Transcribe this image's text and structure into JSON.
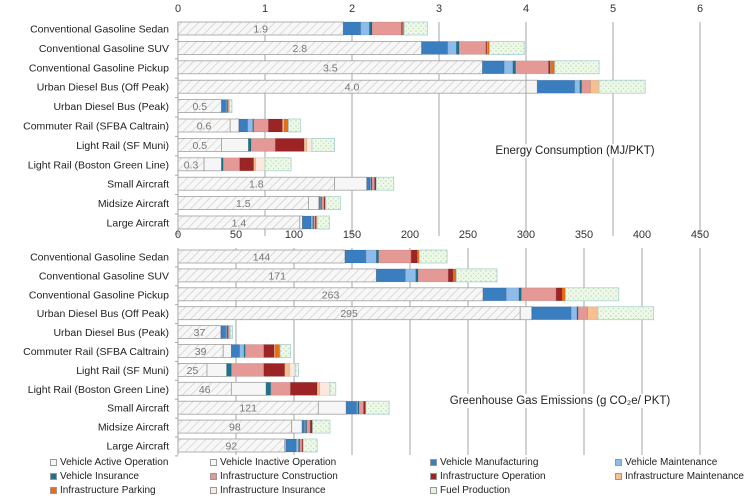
{
  "chart_data": [
    {
      "type": "bar",
      "orientation": "horizontal",
      "stacked": true,
      "title": "Energy Consumption (MJ/PKT)",
      "xlabel": "",
      "ylabel": "",
      "xlim": [
        0,
        6
      ],
      "xticks": [
        "0",
        "1",
        "2",
        "3",
        "4",
        "5",
        "6"
      ],
      "grid": true,
      "categories": [
        "Conventional Gasoline Sedan",
        "Conventional Gasoline SUV",
        "Conventional Gasoline Pickup",
        "Urban Diesel Bus (Off Peak)",
        "Urban Diesel Bus (Peak)",
        "Commuter Rail (SFBA Caltrain)",
        "Light Rail (SF Muni)",
        "Light Rail (Boston Green Line)",
        "Small Aircraft",
        "Midsize Aircraft",
        "Large Aircraft"
      ],
      "value_labels": [
        "1.9",
        "2.8",
        "3.5",
        "4.0",
        "0.5",
        "0.6",
        "0.5",
        "0.3",
        "1.8",
        "1.5",
        "1.4"
      ],
      "series": [
        {
          "name": "Vehicle Active Operation",
          "values": [
            1.9,
            2.8,
            3.5,
            4.0,
            0.5,
            0.6,
            0.5,
            0.3,
            1.8,
            1.5,
            1.4
          ]
        },
        {
          "name": "Vehicle Inactive Operation",
          "values": [
            0,
            0,
            0,
            0.13,
            0,
            0.1,
            0.31,
            0.2,
            0.37,
            0.12,
            0.03
          ]
        },
        {
          "name": "Vehicle Manufacturing",
          "values": [
            0.2,
            0.3,
            0.25,
            0.43,
            0.05,
            0.1,
            0,
            0,
            0.04,
            0.01,
            0.1
          ]
        },
        {
          "name": "Vehicle Maintenance",
          "values": [
            0.1,
            0.1,
            0.1,
            0.06,
            0.01,
            0.06,
            0,
            0,
            0.01,
            0.01,
            0.02
          ]
        },
        {
          "name": "Vehicle Insurance",
          "values": [
            0.03,
            0.03,
            0.03,
            0.02,
            0.01,
            0.01,
            0.03,
            0.02,
            0.01,
            0.01,
            0.01
          ]
        },
        {
          "name": "Infrastructure Construction",
          "values": [
            0.34,
            0.31,
            0.38,
            0.1,
            0.01,
            0.17,
            0.28,
            0.19,
            0.03,
            0.03,
            0.02
          ]
        },
        {
          "name": "Infrastructure Operation",
          "values": [
            0.01,
            0.01,
            0.02,
            0,
            0,
            0.16,
            0.33,
            0.16,
            0.02,
            0.01,
            0.01
          ]
        },
        {
          "name": "Infrastructure Maintenance",
          "values": [
            0.01,
            0.01,
            0.01,
            0.1,
            0.01,
            0.02,
            0.03,
            0.02,
            0,
            0.01,
            0.01
          ]
        },
        {
          "name": "Infrastructure Parking",
          "values": [
            0.01,
            0.02,
            0.04,
            0,
            0,
            0.05,
            0,
            0,
            0,
            0,
            0
          ]
        },
        {
          "name": "Infrastructure Insurance",
          "values": [
            0,
            0,
            0,
            0,
            0,
            0,
            0.06,
            0.11,
            0,
            0,
            0
          ]
        },
        {
          "name": "Fuel Production",
          "values": [
            0.27,
            0.4,
            0.51,
            0.53,
            0.03,
            0.14,
            0.26,
            0.3,
            0.2,
            0.17,
            0.14
          ]
        }
      ]
    },
    {
      "type": "bar",
      "orientation": "horizontal",
      "stacked": true,
      "title": "Greenhouse Gas Emissions (g CO₂e/ PKT)",
      "xlabel": "",
      "ylabel": "",
      "xlim": [
        0,
        450
      ],
      "xticks": [
        "0",
        "50",
        "100",
        "150",
        "200",
        "250",
        "300",
        "350",
        "400",
        "450"
      ],
      "grid": true,
      "categories": [
        "Conventional Gasoline Sedan",
        "Conventional Gasoline SUV",
        "Conventional Gasoline Pickup",
        "Urban Diesel Bus (Off Peak)",
        "Urban Diesel Bus (Peak)",
        "Commuter Rail (SFBA Caltrain)",
        "Light Rail (SF Muni)",
        "Light Rail (Boston Green Line)",
        "Small Aircraft",
        "Midsize Aircraft",
        "Large Aircraft"
      ],
      "value_labels": [
        "144",
        "171",
        "263",
        "295",
        "37",
        "39",
        "25",
        "46",
        "121",
        "98",
        "92"
      ],
      "series": [
        {
          "name": "Vehicle Active Operation",
          "values": [
            144,
            171,
            263,
            295,
            37,
            39,
            25,
            46,
            121,
            98,
            92
          ]
        },
        {
          "name": "Vehicle Inactive Operation",
          "values": [
            0,
            0,
            0,
            10,
            0,
            7,
            17,
            30,
            24,
            9,
            1
          ]
        },
        {
          "name": "Vehicle Manufacturing",
          "values": [
            18,
            25,
            20,
            34,
            4,
            7,
            0,
            0,
            9,
            2,
            9
          ]
        },
        {
          "name": "Vehicle Maintenance",
          "values": [
            9,
            9,
            11,
            5,
            1,
            4,
            0,
            0,
            1,
            1,
            2
          ]
        },
        {
          "name": "Vehicle Insurance",
          "values": [
            2,
            2,
            2,
            1,
            1,
            1,
            4,
            4,
            1,
            1,
            1
          ]
        },
        {
          "name": "Infrastructure Construction",
          "values": [
            28,
            26,
            30,
            8,
            1,
            16,
            28,
            17,
            4,
            3,
            2
          ]
        },
        {
          "name": "Infrastructure Operation",
          "values": [
            5,
            4,
            5,
            0,
            0,
            9,
            18,
            23,
            2,
            2,
            1
          ]
        },
        {
          "name": "Infrastructure Maintenance",
          "values": [
            0,
            0,
            0,
            9,
            1,
            1,
            4,
            2,
            0,
            0,
            0
          ]
        },
        {
          "name": "Infrastructure Parking",
          "values": [
            2,
            3,
            3,
            0,
            0,
            4,
            0,
            0,
            0,
            0,
            0
          ]
        },
        {
          "name": "Infrastructure Insurance",
          "values": [
            0,
            0,
            0,
            0,
            0,
            0,
            5,
            9,
            0,
            0,
            0
          ]
        },
        {
          "name": "Fuel Production",
          "values": [
            24,
            35,
            46,
            48,
            2,
            9,
            3,
            5,
            20,
            15,
            12
          ]
        }
      ]
    }
  ],
  "legend": {
    "placement": "bottom",
    "items": [
      {
        "name": "Vehicle Active Operation",
        "color": "#f4f4f4",
        "pattern": "hatch"
      },
      {
        "name": "Vehicle Inactive Operation",
        "color": "#f6f6f6"
      },
      {
        "name": "Vehicle Manufacturing",
        "color": "#3a7ec0"
      },
      {
        "name": "Vehicle Maintenance",
        "color": "#8dbbea"
      },
      {
        "name": "Vehicle Insurance",
        "color": "#17758f"
      },
      {
        "name": "Infrastructure Construction",
        "color": "#e59997"
      },
      {
        "name": "Infrastructure Operation",
        "color": "#9c2424"
      },
      {
        "name": "Infrastructure Maintenance",
        "color": "#f8c08f"
      },
      {
        "name": "Infrastructure Parking",
        "color": "#ec6c12"
      },
      {
        "name": "Infrastructure Insurance",
        "color": "#fbe8de"
      },
      {
        "name": "Fuel Production",
        "color": "#e5f4dc",
        "pattern": "dots"
      }
    ]
  }
}
